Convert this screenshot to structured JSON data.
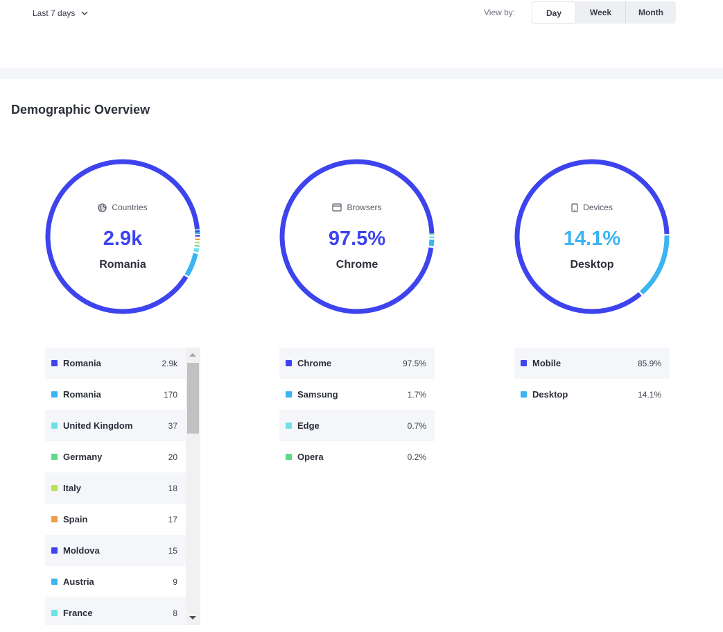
{
  "toolbar": {
    "range_label": "Last 7 days",
    "viewby_label": "View by:",
    "view_options": [
      "Day",
      "Week",
      "Month"
    ],
    "active_view": "Day"
  },
  "section_title": "Demographic Overview",
  "colors": {
    "primary": "#3d44ee",
    "sky": "#3bb4f2",
    "teal": "#6ee0e6",
    "green": "#5fd98a",
    "lime": "#b9e05a",
    "orange": "#ee9c4a"
  },
  "donuts": {
    "countries": {
      "icon": "globe-icon",
      "label": "Countries",
      "value": "2.9k",
      "sub": "Romania"
    },
    "browsers": {
      "icon": "browser-window-icon",
      "label": "Browsers",
      "value": "97.5%",
      "sub": "Chrome"
    },
    "devices": {
      "icon": "phone-icon",
      "label": "Devices",
      "value": "14.1%",
      "sub": "Desktop"
    }
  },
  "countries": [
    {
      "name": "Romania",
      "value": "2.9k",
      "color": "#3d44ee"
    },
    {
      "name": "Romania",
      "value": "170",
      "color": "#3bb4f2"
    },
    {
      "name": "United Kingdom",
      "value": "37",
      "color": "#6ee0e6"
    },
    {
      "name": "Germany",
      "value": "20",
      "color": "#5fd98a"
    },
    {
      "name": "Italy",
      "value": "18",
      "color": "#b9e05a"
    },
    {
      "name": "Spain",
      "value": "17",
      "color": "#ee9c4a"
    },
    {
      "name": "Moldova",
      "value": "15",
      "color": "#3d44ee"
    },
    {
      "name": "Austria",
      "value": "9",
      "color": "#3bb4f2"
    },
    {
      "name": "France",
      "value": "8",
      "color": "#6ee0e6"
    }
  ],
  "browsers": [
    {
      "name": "Chrome",
      "value": "97.5%",
      "color": "#3d44ee"
    },
    {
      "name": "Samsung",
      "value": "1.7%",
      "color": "#3bb4f2"
    },
    {
      "name": "Edge",
      "value": "0.7%",
      "color": "#6ee0e6"
    },
    {
      "name": "Opera",
      "value": "0.2%",
      "color": "#5fd98a"
    }
  ],
  "devices": [
    {
      "name": "Mobile",
      "value": "85.9%",
      "color": "#3d44ee"
    },
    {
      "name": "Desktop",
      "value": "14.1%",
      "color": "#3bb4f2"
    }
  ],
  "chart_data": [
    {
      "type": "pie",
      "title": "Countries",
      "categories": [
        "Romania",
        "Romania",
        "United Kingdom",
        "Germany",
        "Italy",
        "Spain",
        "Moldova",
        "Austria",
        "France"
      ],
      "values": [
        2900,
        170,
        37,
        20,
        18,
        17,
        15,
        9,
        8
      ]
    },
    {
      "type": "pie",
      "title": "Browsers",
      "categories": [
        "Chrome",
        "Samsung",
        "Edge",
        "Opera"
      ],
      "values": [
        97.5,
        1.7,
        0.7,
        0.2
      ]
    },
    {
      "type": "pie",
      "title": "Devices",
      "categories": [
        "Mobile",
        "Desktop"
      ],
      "values": [
        85.9,
        14.1
      ]
    }
  ]
}
